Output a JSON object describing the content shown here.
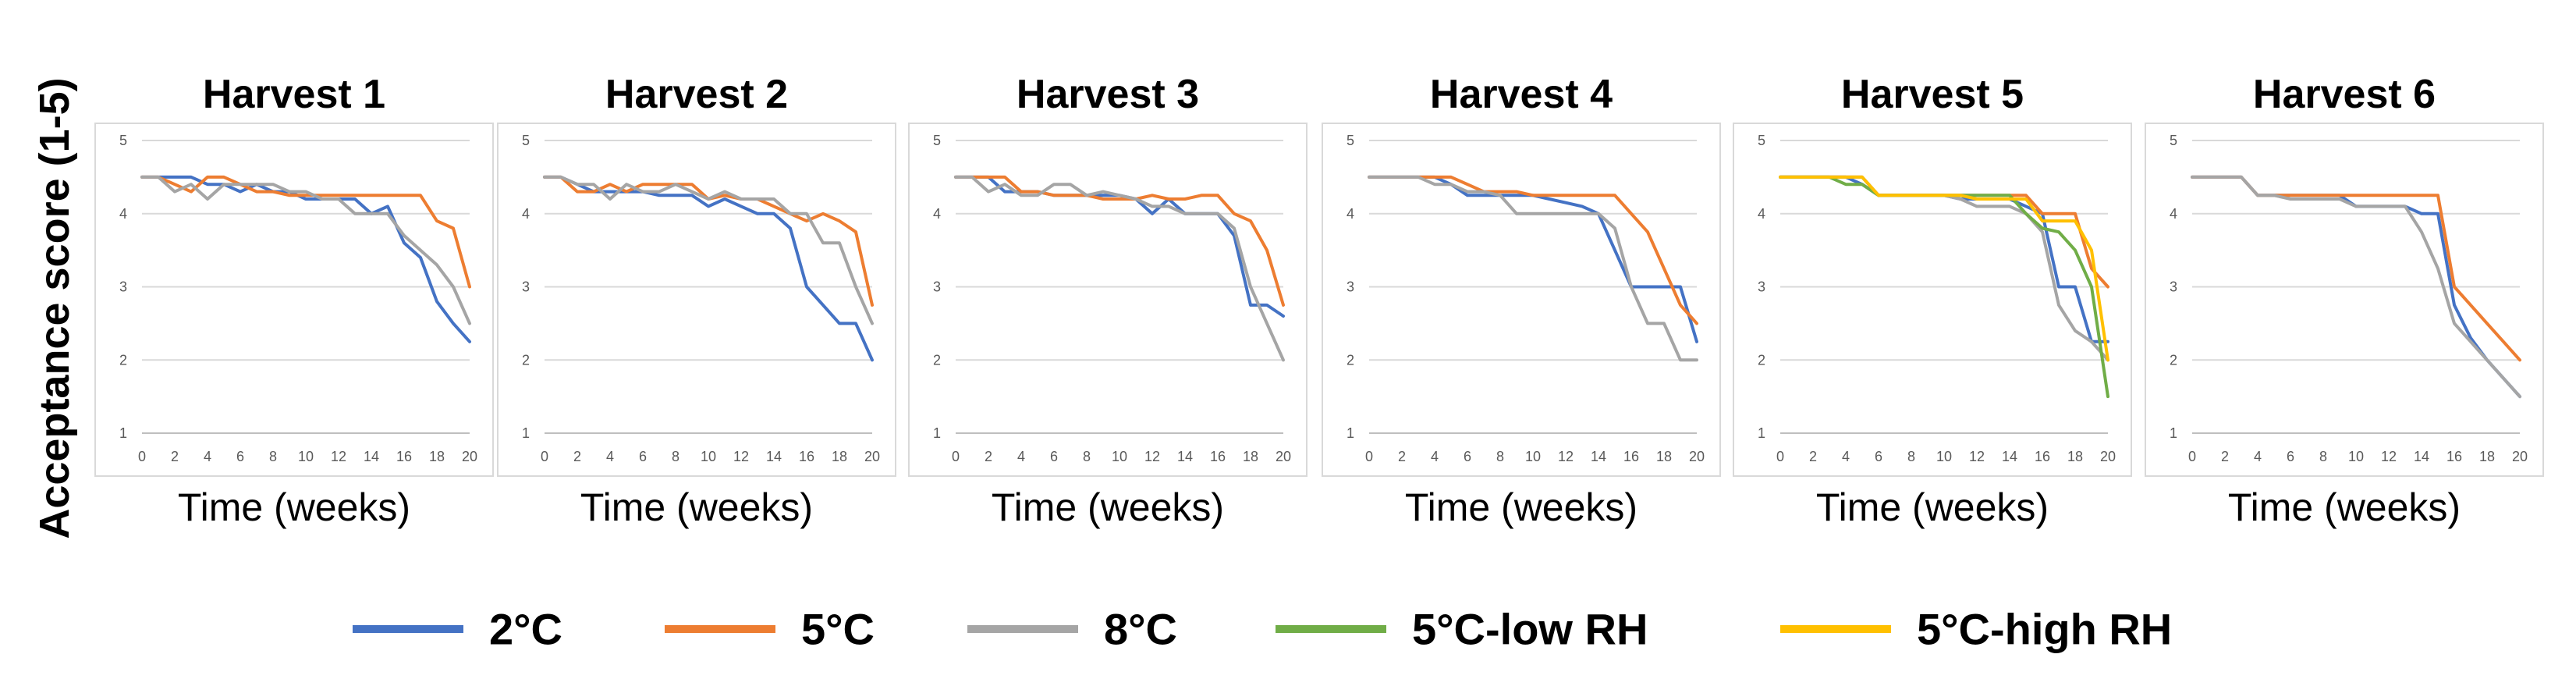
{
  "figure": {
    "ylabel": "Acceptance score (1-5)",
    "legend": [
      {
        "label": "2°C",
        "color": "#4472C4"
      },
      {
        "label": "5°C",
        "color": "#ED7D31"
      },
      {
        "label": "8°C",
        "color": "#A5A5A5"
      },
      {
        "label": "5°C-low RH",
        "color": "#70AD47"
      },
      {
        "label": "5°C-high RH",
        "color": "#FFC000"
      }
    ]
  },
  "chart_data": [
    {
      "type": "line",
      "title": "Harvest 1",
      "xlabel": "Time (weeks)",
      "ylabel": "",
      "xlim": [
        0,
        20
      ],
      "ylim": [
        1,
        5
      ],
      "x_ticks": [
        0,
        2,
        4,
        6,
        8,
        10,
        12,
        14,
        16,
        18,
        20
      ],
      "y_ticks": [
        1,
        2,
        3,
        4,
        5
      ],
      "grid": true,
      "series": [
        {
          "name": "2°C",
          "color": "#4472C4",
          "x": [
            0,
            1,
            2,
            3,
            4,
            5,
            6,
            7,
            8,
            9,
            10,
            11,
            12,
            13,
            14,
            15,
            16,
            17,
            18,
            19,
            20
          ],
          "y": [
            4.5,
            4.5,
            4.5,
            4.5,
            4.4,
            4.4,
            4.3,
            4.4,
            4.3,
            4.3,
            4.2,
            4.2,
            4.2,
            4.2,
            4.0,
            4.1,
            3.6,
            3.4,
            2.8,
            2.5,
            2.25
          ]
        },
        {
          "name": "5°C",
          "color": "#ED7D31",
          "x": [
            0,
            1,
            2,
            3,
            4,
            5,
            6,
            7,
            8,
            9,
            10,
            11,
            12,
            13,
            14,
            15,
            16,
            17,
            18,
            19,
            20
          ],
          "y": [
            4.5,
            4.5,
            4.4,
            4.3,
            4.5,
            4.5,
            4.4,
            4.3,
            4.3,
            4.25,
            4.25,
            4.25,
            4.25,
            4.25,
            4.25,
            4.25,
            4.25,
            4.25,
            3.9,
            3.8,
            3.0
          ]
        },
        {
          "name": "8°C",
          "color": "#A5A5A5",
          "x": [
            0,
            1,
            2,
            3,
            4,
            5,
            6,
            7,
            8,
            9,
            10,
            11,
            12,
            13,
            14,
            15,
            16,
            17,
            18,
            19,
            20
          ],
          "y": [
            4.5,
            4.5,
            4.3,
            4.4,
            4.2,
            4.4,
            4.4,
            4.4,
            4.4,
            4.3,
            4.3,
            4.2,
            4.2,
            4.0,
            4.0,
            4.0,
            3.7,
            3.5,
            3.3,
            3.0,
            2.5
          ]
        }
      ]
    },
    {
      "type": "line",
      "title": "Harvest 2",
      "xlabel": "Time (weeks)",
      "ylabel": "",
      "xlim": [
        0,
        20
      ],
      "ylim": [
        1,
        5
      ],
      "x_ticks": [
        0,
        2,
        4,
        6,
        8,
        10,
        12,
        14,
        16,
        18,
        20
      ],
      "y_ticks": [
        1,
        2,
        3,
        4,
        5
      ],
      "grid": true,
      "series": [
        {
          "name": "2°C",
          "color": "#4472C4",
          "x": [
            0,
            1,
            2,
            3,
            4,
            5,
            6,
            7,
            8,
            9,
            10,
            11,
            12,
            13,
            14,
            15,
            16,
            17,
            18,
            19,
            20
          ],
          "y": [
            4.5,
            4.5,
            4.4,
            4.3,
            4.3,
            4.3,
            4.3,
            4.25,
            4.25,
            4.25,
            4.1,
            4.2,
            4.1,
            4.0,
            4.0,
            3.8,
            3.0,
            2.75,
            2.5,
            2.5,
            2.0
          ]
        },
        {
          "name": "5°C",
          "color": "#ED7D31",
          "x": [
            0,
            1,
            2,
            3,
            4,
            5,
            6,
            7,
            8,
            9,
            10,
            11,
            12,
            13,
            14,
            15,
            16,
            17,
            18,
            19,
            20
          ],
          "y": [
            4.5,
            4.5,
            4.3,
            4.3,
            4.4,
            4.3,
            4.4,
            4.4,
            4.4,
            4.4,
            4.2,
            4.25,
            4.2,
            4.2,
            4.1,
            4.0,
            3.9,
            4.0,
            3.9,
            3.75,
            2.75
          ]
        },
        {
          "name": "8°C",
          "color": "#A5A5A5",
          "x": [
            0,
            1,
            2,
            3,
            4,
            5,
            6,
            7,
            8,
            9,
            10,
            11,
            12,
            13,
            14,
            15,
            16,
            17,
            18,
            19,
            20
          ],
          "y": [
            4.5,
            4.5,
            4.4,
            4.4,
            4.2,
            4.4,
            4.3,
            4.3,
            4.4,
            4.3,
            4.2,
            4.3,
            4.2,
            4.2,
            4.2,
            4.0,
            4.0,
            3.6,
            3.6,
            3.0,
            2.5
          ]
        }
      ]
    },
    {
      "type": "line",
      "title": "Harvest 3",
      "xlabel": "Time (weeks)",
      "ylabel": "",
      "xlim": [
        0,
        20
      ],
      "ylim": [
        1,
        5
      ],
      "x_ticks": [
        0,
        2,
        4,
        6,
        8,
        10,
        12,
        14,
        16,
        18,
        20
      ],
      "y_ticks": [
        1,
        2,
        3,
        4,
        5
      ],
      "grid": true,
      "series": [
        {
          "name": "2°C",
          "color": "#4472C4",
          "x": [
            0,
            1,
            2,
            3,
            4,
            5,
            6,
            7,
            8,
            9,
            10,
            11,
            12,
            13,
            14,
            15,
            16,
            17,
            18,
            19,
            20
          ],
          "y": [
            4.5,
            4.5,
            4.5,
            4.3,
            4.3,
            4.3,
            4.25,
            4.25,
            4.25,
            4.25,
            4.25,
            4.2,
            4.0,
            4.2,
            4.0,
            4.0,
            4.0,
            3.7,
            2.75,
            2.75,
            2.6
          ]
        },
        {
          "name": "5°C",
          "color": "#ED7D31",
          "x": [
            0,
            1,
            2,
            3,
            4,
            5,
            6,
            7,
            8,
            9,
            10,
            11,
            12,
            13,
            14,
            15,
            16,
            17,
            18,
            19,
            20
          ],
          "y": [
            4.5,
            4.5,
            4.5,
            4.5,
            4.3,
            4.3,
            4.25,
            4.25,
            4.25,
            4.2,
            4.2,
            4.2,
            4.25,
            4.2,
            4.2,
            4.25,
            4.25,
            4.0,
            3.9,
            3.5,
            2.75
          ]
        },
        {
          "name": "8°C",
          "color": "#A5A5A5",
          "x": [
            0,
            1,
            2,
            3,
            4,
            5,
            6,
            7,
            8,
            9,
            10,
            11,
            12,
            13,
            14,
            15,
            16,
            17,
            18,
            19,
            20
          ],
          "y": [
            4.5,
            4.5,
            4.3,
            4.4,
            4.25,
            4.25,
            4.4,
            4.4,
            4.25,
            4.3,
            4.25,
            4.2,
            4.1,
            4.1,
            4.0,
            4.0,
            4.0,
            3.8,
            3.0,
            2.5,
            2.0
          ]
        }
      ]
    },
    {
      "type": "line",
      "title": "Harvest 4",
      "xlabel": "Time (weeks)",
      "ylabel": "",
      "xlim": [
        0,
        20
      ],
      "ylim": [
        1,
        5
      ],
      "x_ticks": [
        0,
        2,
        4,
        6,
        8,
        10,
        12,
        14,
        16,
        18,
        20
      ],
      "y_ticks": [
        1,
        2,
        3,
        4,
        5
      ],
      "grid": true,
      "series": [
        {
          "name": "2°C",
          "color": "#4472C4",
          "x": [
            0,
            1,
            2,
            3,
            4,
            5,
            6,
            7,
            8,
            9,
            10,
            11,
            12,
            13,
            14,
            15,
            16,
            17,
            18,
            19,
            20
          ],
          "y": [
            4.5,
            4.5,
            4.5,
            4.5,
            4.5,
            4.4,
            4.25,
            4.25,
            4.25,
            4.25,
            4.25,
            4.2,
            4.15,
            4.1,
            4.0,
            3.5,
            3.0,
            3.0,
            3.0,
            3.0,
            2.25
          ]
        },
        {
          "name": "5°C",
          "color": "#ED7D31",
          "x": [
            0,
            1,
            2,
            3,
            4,
            5,
            6,
            7,
            8,
            9,
            10,
            11,
            12,
            13,
            14,
            15,
            16,
            17,
            18,
            19,
            20
          ],
          "y": [
            4.5,
            4.5,
            4.5,
            4.5,
            4.5,
            4.5,
            4.4,
            4.3,
            4.3,
            4.3,
            4.25,
            4.25,
            4.25,
            4.25,
            4.25,
            4.25,
            4.0,
            3.75,
            3.25,
            2.75,
            2.5
          ]
        },
        {
          "name": "8°C",
          "color": "#A5A5A5",
          "x": [
            0,
            1,
            2,
            3,
            4,
            5,
            6,
            7,
            8,
            9,
            10,
            11,
            12,
            13,
            14,
            15,
            16,
            17,
            18,
            19,
            20
          ],
          "y": [
            4.5,
            4.5,
            4.5,
            4.5,
            4.4,
            4.4,
            4.3,
            4.3,
            4.25,
            4.0,
            4.0,
            4.0,
            4.0,
            4.0,
            4.0,
            3.8,
            3.0,
            2.5,
            2.5,
            2.0,
            2.0
          ]
        }
      ]
    },
    {
      "type": "line",
      "title": "Harvest 5",
      "xlabel": "Time (weeks)",
      "ylabel": "",
      "xlim": [
        0,
        20
      ],
      "ylim": [
        1,
        5
      ],
      "x_ticks": [
        0,
        2,
        4,
        6,
        8,
        10,
        12,
        14,
        16,
        18,
        20
      ],
      "y_ticks": [
        1,
        2,
        3,
        4,
        5
      ],
      "grid": true,
      "series": [
        {
          "name": "2°C",
          "color": "#4472C4",
          "x": [
            0,
            1,
            2,
            3,
            4,
            5,
            6,
            7,
            8,
            9,
            10,
            11,
            12,
            13,
            14,
            15,
            16,
            17,
            18,
            19,
            20
          ],
          "y": [
            4.5,
            4.5,
            4.5,
            4.5,
            4.5,
            4.4,
            4.25,
            4.25,
            4.25,
            4.25,
            4.25,
            4.2,
            4.2,
            4.2,
            4.2,
            4.1,
            4.0,
            3.0,
            3.0,
            2.25,
            2.25
          ]
        },
        {
          "name": "5°C",
          "color": "#ED7D31",
          "x": [
            0,
            1,
            2,
            3,
            4,
            5,
            6,
            7,
            8,
            9,
            10,
            11,
            12,
            13,
            14,
            15,
            16,
            17,
            18,
            19,
            20
          ],
          "y": [
            4.5,
            4.5,
            4.5,
            4.5,
            4.5,
            4.5,
            4.25,
            4.25,
            4.25,
            4.25,
            4.25,
            4.25,
            4.25,
            4.25,
            4.25,
            4.25,
            4.0,
            4.0,
            4.0,
            3.25,
            3.0
          ]
        },
        {
          "name": "8°C",
          "color": "#A5A5A5",
          "x": [
            0,
            1,
            2,
            3,
            4,
            5,
            6,
            7,
            8,
            9,
            10,
            11,
            12,
            13,
            14,
            15,
            16,
            17,
            18,
            19,
            20
          ],
          "y": [
            4.5,
            4.5,
            4.5,
            4.5,
            4.5,
            4.5,
            4.25,
            4.25,
            4.25,
            4.25,
            4.25,
            4.2,
            4.1,
            4.1,
            4.1,
            4.0,
            3.75,
            2.75,
            2.4,
            2.25,
            2.0
          ]
        },
        {
          "name": "5°C-low RH",
          "color": "#70AD47",
          "x": [
            0,
            1,
            2,
            3,
            4,
            5,
            6,
            7,
            8,
            9,
            10,
            11,
            12,
            13,
            14,
            15,
            16,
            17,
            18,
            19,
            20
          ],
          "y": [
            4.5,
            4.5,
            4.5,
            4.5,
            4.4,
            4.4,
            4.25,
            4.25,
            4.25,
            4.25,
            4.25,
            4.25,
            4.25,
            4.25,
            4.25,
            4.0,
            3.8,
            3.75,
            3.5,
            3.0,
            1.5
          ]
        },
        {
          "name": "5°C-high RH",
          "color": "#FFC000",
          "x": [
            0,
            1,
            2,
            3,
            4,
            5,
            6,
            7,
            8,
            9,
            10,
            11,
            12,
            13,
            14,
            15,
            16,
            17,
            18,
            19,
            20
          ],
          "y": [
            4.5,
            4.5,
            4.5,
            4.5,
            4.5,
            4.5,
            4.25,
            4.25,
            4.25,
            4.25,
            4.25,
            4.25,
            4.2,
            4.2,
            4.2,
            4.2,
            3.9,
            3.9,
            3.9,
            3.5,
            2.0
          ]
        }
      ]
    },
    {
      "type": "line",
      "title": "Harvest 6",
      "xlabel": "Time (weeks)",
      "ylabel": "",
      "xlim": [
        0,
        20
      ],
      "ylim": [
        1,
        5
      ],
      "x_ticks": [
        0,
        2,
        4,
        6,
        8,
        10,
        12,
        14,
        16,
        18,
        20
      ],
      "y_ticks": [
        1,
        2,
        3,
        4,
        5
      ],
      "grid": true,
      "series": [
        {
          "name": "2°C",
          "color": "#4472C4",
          "x": [
            0,
            1,
            2,
            3,
            4,
            5,
            6,
            7,
            8,
            9,
            10,
            11,
            12,
            13,
            14,
            15,
            16,
            17,
            18,
            19,
            20
          ],
          "y": [
            4.5,
            4.5,
            4.5,
            4.5,
            4.25,
            4.25,
            4.25,
            4.25,
            4.25,
            4.25,
            4.1,
            4.1,
            4.1,
            4.1,
            4.0,
            4.0,
            2.75,
            2.3,
            2.0,
            1.75,
            1.5
          ]
        },
        {
          "name": "5°C",
          "color": "#ED7D31",
          "x": [
            0,
            1,
            2,
            3,
            4,
            5,
            6,
            7,
            8,
            9,
            10,
            11,
            12,
            13,
            14,
            15,
            16,
            17,
            18,
            19,
            20
          ],
          "y": [
            4.5,
            4.5,
            4.5,
            4.5,
            4.25,
            4.25,
            4.25,
            4.25,
            4.25,
            4.25,
            4.25,
            4.25,
            4.25,
            4.25,
            4.25,
            4.25,
            3.0,
            2.75,
            2.5,
            2.25,
            2.0
          ]
        },
        {
          "name": "8°C",
          "color": "#A5A5A5",
          "x": [
            0,
            1,
            2,
            3,
            4,
            5,
            6,
            7,
            8,
            9,
            10,
            11,
            12,
            13,
            14,
            15,
            16,
            17,
            18,
            19,
            20
          ],
          "y": [
            4.5,
            4.5,
            4.5,
            4.5,
            4.25,
            4.25,
            4.2,
            4.2,
            4.2,
            4.2,
            4.1,
            4.1,
            4.1,
            4.1,
            3.75,
            3.25,
            2.5,
            2.25,
            2.0,
            1.75,
            1.5
          ]
        }
      ]
    }
  ]
}
